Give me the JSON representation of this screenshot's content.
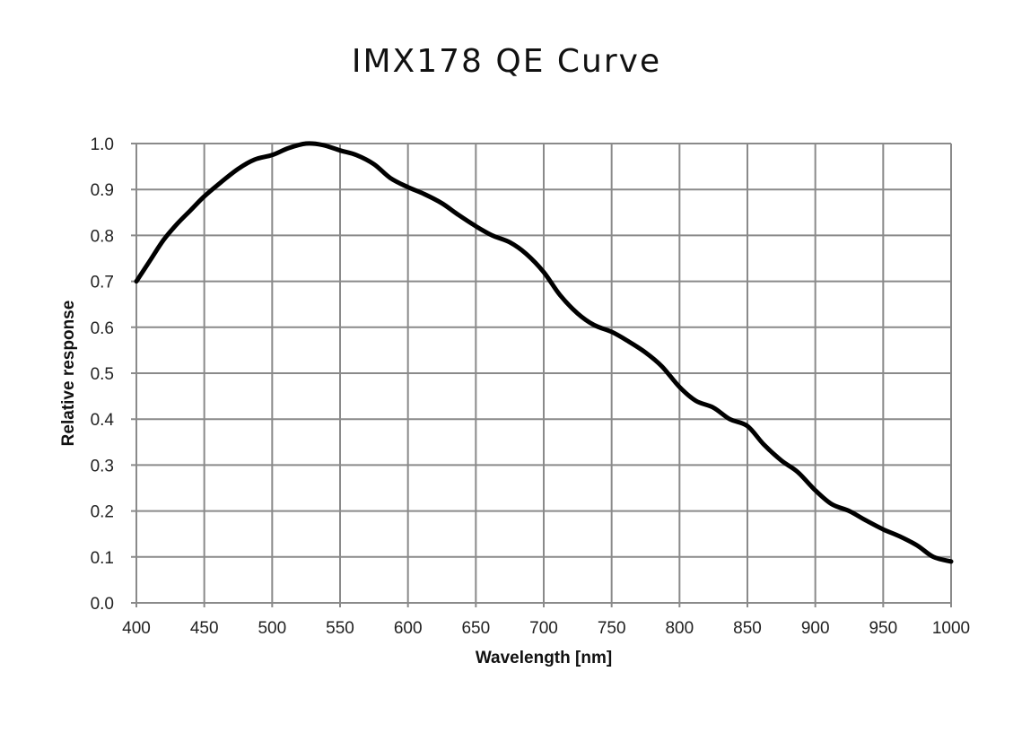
{
  "chart_data": {
    "type": "line",
    "title": "IMX178 QE Curve",
    "xlabel": "Wavelength [nm]",
    "ylabel": "Relative response",
    "xlim": [
      400,
      1000
    ],
    "ylim": [
      0,
      1.0
    ],
    "grid": true,
    "x_ticks": [
      "400",
      "450",
      "500",
      "550",
      "600",
      "650",
      "700",
      "750",
      "800",
      "850",
      "900",
      "950",
      "1000"
    ],
    "y_ticks": [
      "0.0",
      "0.1",
      "0.2",
      "0.3",
      "0.4",
      "0.5",
      "0.6",
      "0.7",
      "0.8",
      "0.9",
      "1.0"
    ],
    "series": [
      {
        "name": "Relative response",
        "color": "#000000",
        "x": [
          400,
          410,
          420,
          430,
          440,
          450,
          462,
          475,
          487,
          500,
          512,
          525,
          537,
          550,
          562,
          575,
          587,
          600,
          612,
          625,
          637,
          650,
          662,
          675,
          687,
          700,
          712,
          725,
          737,
          750,
          762,
          775,
          787,
          800,
          812,
          825,
          837,
          850,
          862,
          875,
          887,
          900,
          912,
          925,
          937,
          950,
          962,
          975,
          987,
          1000
        ],
        "y": [
          0.7,
          0.745,
          0.79,
          0.825,
          0.855,
          0.885,
          0.915,
          0.945,
          0.965,
          0.975,
          0.99,
          1.0,
          0.997,
          0.985,
          0.975,
          0.955,
          0.925,
          0.905,
          0.89,
          0.87,
          0.845,
          0.82,
          0.8,
          0.785,
          0.76,
          0.72,
          0.67,
          0.63,
          0.605,
          0.59,
          0.57,
          0.545,
          0.515,
          0.47,
          0.44,
          0.425,
          0.4,
          0.385,
          0.345,
          0.31,
          0.285,
          0.245,
          0.215,
          0.2,
          0.18,
          0.16,
          0.145,
          0.125,
          0.1,
          0.09
        ]
      }
    ]
  }
}
